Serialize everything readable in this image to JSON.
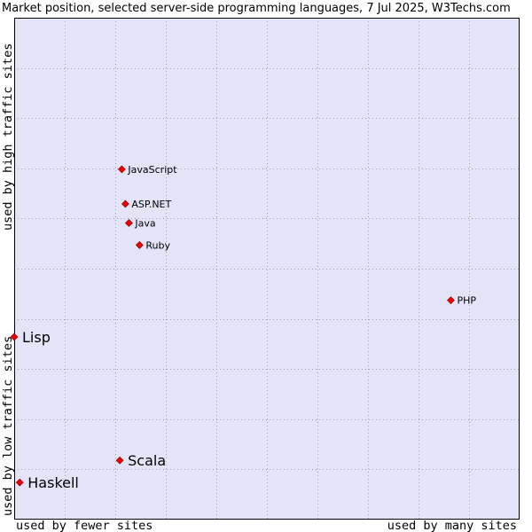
{
  "chart_data": {
    "type": "scatter",
    "title": "Market position, selected server-side programming languages, 7 Jul 2025, W3Techs.com",
    "xlabel_left": "used by fewer sites",
    "xlabel_right": "used by many sites",
    "ylabel_bottom": "used by low traffic sites",
    "ylabel_top": "used by high traffic sites",
    "grid": true,
    "xlim": [
      0,
      100
    ],
    "ylim": [
      0,
      100
    ],
    "points": [
      {
        "name": "JavaScript",
        "x": 21.3,
        "y": 69.8,
        "emphasis": false
      },
      {
        "name": "ASP.NET",
        "x": 22.0,
        "y": 62.9,
        "emphasis": false
      },
      {
        "name": "Java",
        "x": 22.7,
        "y": 59.1,
        "emphasis": false
      },
      {
        "name": "Ruby",
        "x": 24.8,
        "y": 54.7,
        "emphasis": false
      },
      {
        "name": "PHP",
        "x": 86.4,
        "y": 43.7,
        "emphasis": false
      },
      {
        "name": "Lisp",
        "x": 0.0,
        "y": 36.4,
        "emphasis": true
      },
      {
        "name": "Scala",
        "x": 20.9,
        "y": 11.8,
        "emphasis": true
      },
      {
        "name": "Haskell",
        "x": 1.1,
        "y": 7.4,
        "emphasis": true
      }
    ],
    "colors": {
      "plot_bg": "#e4e4f8",
      "grid": "#a0a0b8",
      "border": "#000000",
      "marker": "#ee0000",
      "marker_edge": "#880000"
    }
  }
}
